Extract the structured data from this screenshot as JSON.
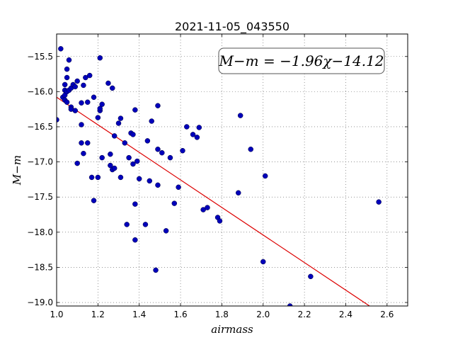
{
  "chart_data": {
    "type": "scatter",
    "title": "2021-11-05_043550",
    "xlabel": "airmass",
    "ylabel": "M−m",
    "xlim": [
      1.0,
      2.7
    ],
    "ylim": [
      -19.05,
      -15.18
    ],
    "xticks": [
      "1.0",
      "1.2",
      "1.4",
      "1.6",
      "1.8",
      "2.0",
      "2.2",
      "2.4",
      "2.6"
    ],
    "xtick_values": [
      1.0,
      1.2,
      1.4,
      1.6,
      1.8,
      2.0,
      2.2,
      2.4,
      2.6
    ],
    "yticks": [
      "−15.5",
      "−16.0",
      "−16.5",
      "−17.0",
      "−17.5",
      "−18.0",
      "−18.5",
      "−19.0"
    ],
    "ytick_values": [
      -15.5,
      -16.0,
      -16.5,
      -17.0,
      -17.5,
      -18.0,
      -18.5,
      -19.0
    ],
    "grid": true,
    "annotation": "M−m = −1.96χ−14.12",
    "fit": {
      "slope": -1.96,
      "intercept": -14.12,
      "x_range": [
        1.0,
        2.56
      ],
      "color": "#dd0000"
    },
    "marker_color": "#0000bb",
    "points": [
      [
        1.02,
        -15.39
      ],
      [
        1.0,
        -16.4
      ],
      [
        1.03,
        -16.08
      ],
      [
        1.04,
        -15.9
      ],
      [
        1.04,
        -16.12
      ],
      [
        1.04,
        -16.05
      ],
      [
        1.04,
        -15.98
      ],
      [
        1.05,
        -16.0
      ],
      [
        1.05,
        -16.15
      ],
      [
        1.05,
        -15.68
      ],
      [
        1.05,
        -15.8
      ],
      [
        1.06,
        -15.55
      ],
      [
        1.06,
        -15.98
      ],
      [
        1.07,
        -16.22
      ],
      [
        1.07,
        -16.25
      ],
      [
        1.07,
        -15.95
      ],
      [
        1.08,
        -15.9
      ],
      [
        1.09,
        -15.93
      ],
      [
        1.09,
        -16.27
      ],
      [
        1.1,
        -15.85
      ],
      [
        1.1,
        -17.02
      ],
      [
        1.12,
        -16.16
      ],
      [
        1.12,
        -16.47
      ],
      [
        1.12,
        -16.73
      ],
      [
        1.13,
        -15.91
      ],
      [
        1.13,
        -16.88
      ],
      [
        1.14,
        -15.8
      ],
      [
        1.15,
        -16.73
      ],
      [
        1.15,
        -16.15
      ],
      [
        1.16,
        -15.77
      ],
      [
        1.17,
        -17.22
      ],
      [
        1.18,
        -17.55
      ],
      [
        1.18,
        -16.08
      ],
      [
        1.2,
        -16.37
      ],
      [
        1.2,
        -17.22
      ],
      [
        1.21,
        -15.52
      ],
      [
        1.21,
        -16.27
      ],
      [
        1.21,
        -16.24
      ],
      [
        1.22,
        -16.18
      ],
      [
        1.22,
        -16.94
      ],
      [
        1.25,
        -15.88
      ],
      [
        1.26,
        -17.05
      ],
      [
        1.26,
        -16.89
      ],
      [
        1.27,
        -15.95
      ],
      [
        1.27,
        -17.11
      ],
      [
        1.28,
        -16.63
      ],
      [
        1.28,
        -17.09
      ],
      [
        1.3,
        -16.45
      ],
      [
        1.31,
        -16.38
      ],
      [
        1.31,
        -17.22
      ],
      [
        1.33,
        -16.73
      ],
      [
        1.34,
        -17.89
      ],
      [
        1.35,
        -16.94
      ],
      [
        1.36,
        -16.59
      ],
      [
        1.37,
        -16.61
      ],
      [
        1.37,
        -17.03
      ],
      [
        1.38,
        -18.11
      ],
      [
        1.38,
        -17.6
      ],
      [
        1.38,
        -16.26
      ],
      [
        1.39,
        -16.99
      ],
      [
        1.4,
        -17.24
      ],
      [
        1.43,
        -17.89
      ],
      [
        1.44,
        -16.7
      ],
      [
        1.45,
        -17.27
      ],
      [
        1.46,
        -16.42
      ],
      [
        1.48,
        -18.54
      ],
      [
        1.49,
        -16.82
      ],
      [
        1.49,
        -17.33
      ],
      [
        1.49,
        -16.2
      ],
      [
        1.51,
        -16.87
      ],
      [
        1.53,
        -17.98
      ],
      [
        1.55,
        -16.94
      ],
      [
        1.57,
        -17.59
      ],
      [
        1.59,
        -17.36
      ],
      [
        1.61,
        -16.84
      ],
      [
        1.63,
        -16.5
      ],
      [
        1.66,
        -16.61
      ],
      [
        1.68,
        -16.65
      ],
      [
        1.69,
        -16.51
      ],
      [
        1.71,
        -17.68
      ],
      [
        1.73,
        -17.65
      ],
      [
        1.78,
        -17.79
      ],
      [
        1.79,
        -17.84
      ],
      [
        1.88,
        -17.44
      ],
      [
        1.89,
        -16.34
      ],
      [
        1.94,
        -16.82
      ],
      [
        2.0,
        -18.42
      ],
      [
        2.01,
        -17.2
      ],
      [
        2.13,
        -19.05
      ],
      [
        2.23,
        -18.63
      ],
      [
        2.56,
        -17.57
      ]
    ]
  }
}
